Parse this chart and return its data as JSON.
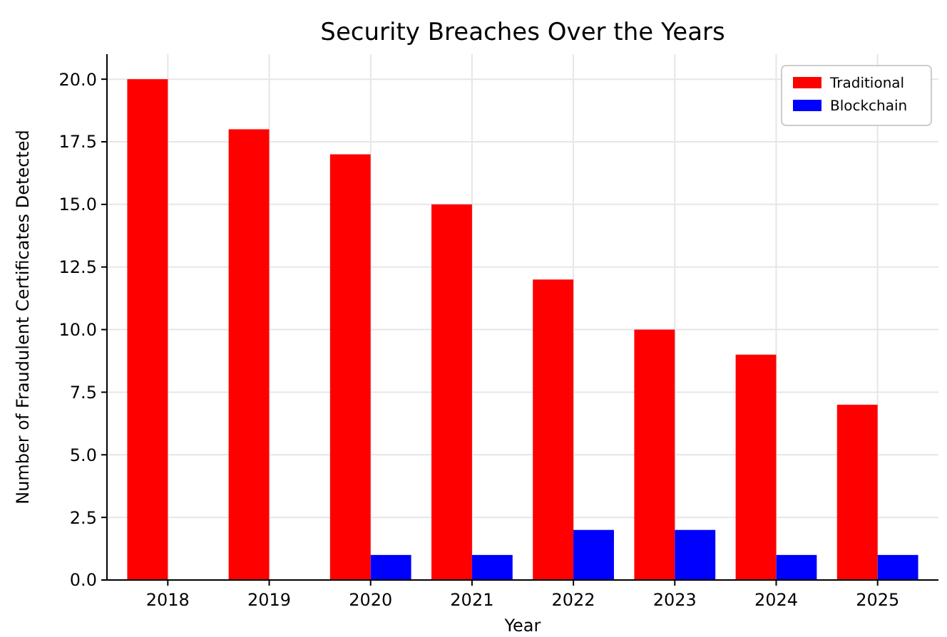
{
  "chart_data": {
    "type": "bar",
    "title": "Security Breaches Over the Years",
    "xlabel": "Year",
    "ylabel": "Number of Fraudulent Certificates Detected",
    "categories": [
      "2018",
      "2019",
      "2020",
      "2021",
      "2022",
      "2023",
      "2024",
      "2025"
    ],
    "series": [
      {
        "name": "Traditional",
        "color": "#ff0000",
        "values": [
          20,
          18,
          17,
          15,
          12,
          10,
          9,
          7
        ]
      },
      {
        "name": "Blockchain",
        "color": "#0000ff",
        "values": [
          0,
          0,
          1,
          1,
          2,
          2,
          1,
          1
        ]
      }
    ],
    "ylim": [
      0,
      21
    ],
    "yticks": [
      {
        "value": 0,
        "label": "0.0"
      },
      {
        "value": 2.5,
        "label": "2.5"
      },
      {
        "value": 5,
        "label": "5.0"
      },
      {
        "value": 7.5,
        "label": "7.5"
      },
      {
        "value": 10,
        "label": "10.0"
      },
      {
        "value": 12.5,
        "label": "12.5"
      },
      {
        "value": 15,
        "label": "15.0"
      },
      {
        "value": 17.5,
        "label": "17.5"
      },
      {
        "value": 20,
        "label": "20.0"
      }
    ],
    "grid": true,
    "legend": "top right"
  }
}
